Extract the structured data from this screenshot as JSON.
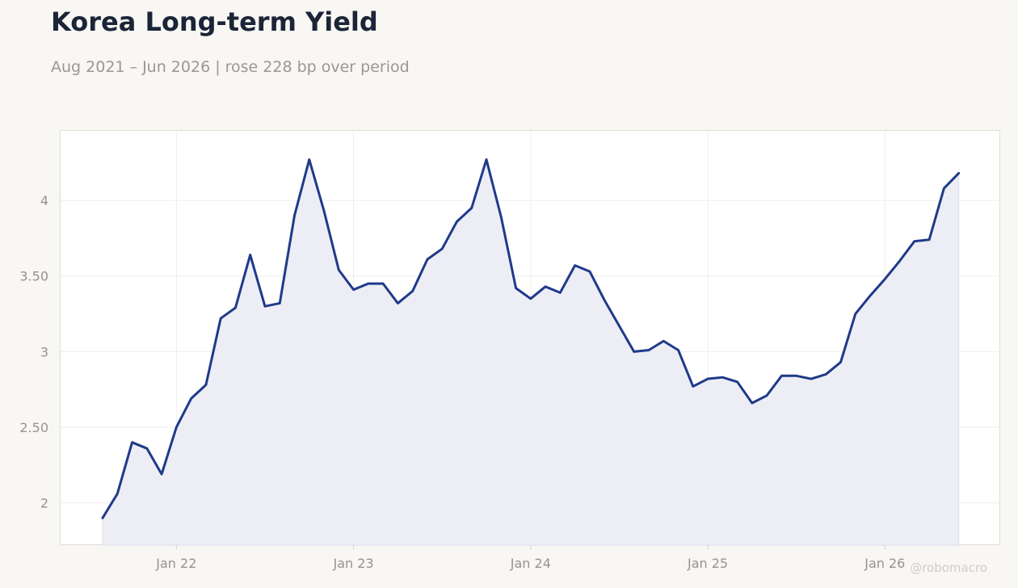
{
  "header": {
    "title": "Korea Long-term Yield",
    "subtitle": "Aug 2021 – Jun 2026 | rose 228 bp over period"
  },
  "watermark": "@robomacro",
  "colors": {
    "line": "#1f3a8a",
    "area_fill": "#edeef5",
    "grid": "#ededed",
    "background": "#f8f7f4",
    "plot_background": "#ffffff"
  },
  "chart_data": {
    "type": "area",
    "x_ticks": [
      "Jan 22",
      "Jan 23",
      "Jan 24",
      "Jan 25",
      "Jan 26"
    ],
    "y_ticks": [
      "2",
      "2.50",
      "3",
      "3.50",
      "4"
    ],
    "y_tick_values": [
      2,
      2.5,
      3,
      3.5,
      4
    ],
    "ylim": [
      1.72,
      4.46
    ],
    "grid": true,
    "series": [
      {
        "x": [
          "2021-08",
          "2021-09",
          "2021-10",
          "2021-11",
          "2021-12",
          "2022-01",
          "2022-02",
          "2022-03",
          "2022-04",
          "2022-05",
          "2022-06",
          "2022-07",
          "2022-08",
          "2022-09",
          "2022-10",
          "2022-11",
          "2022-12",
          "2023-01",
          "2023-02",
          "2023-03",
          "2023-04",
          "2023-05",
          "2023-06",
          "2023-07",
          "2023-08",
          "2023-09",
          "2023-10",
          "2023-11",
          "2023-12",
          "2024-01",
          "2024-02",
          "2024-03",
          "2024-04",
          "2024-05",
          "2024-06",
          "2024-07",
          "2024-08",
          "2024-09",
          "2024-10",
          "2024-11",
          "2024-12",
          "2025-01",
          "2025-02",
          "2025-03",
          "2025-04",
          "2025-05",
          "2025-06",
          "2025-07",
          "2025-08",
          "2025-09",
          "2025-10",
          "2025-11",
          "2025-12",
          "2026-01",
          "2026-02",
          "2026-03",
          "2026-04",
          "2026-05",
          "2026-06"
        ],
        "values": [
          1.9,
          2.06,
          2.4,
          2.36,
          2.19,
          2.5,
          2.69,
          2.78,
          3.22,
          3.29,
          3.64,
          3.3,
          3.32,
          3.9,
          4.27,
          3.93,
          3.54,
          3.41,
          3.45,
          3.45,
          3.32,
          3.4,
          3.61,
          3.68,
          3.86,
          3.95,
          4.27,
          3.89,
          3.42,
          3.35,
          3.43,
          3.39,
          3.57,
          3.53,
          3.34,
          3.17,
          3.0,
          3.01,
          3.07,
          3.01,
          2.77,
          2.82,
          2.83,
          2.8,
          2.66,
          2.71,
          2.84,
          2.84,
          2.82,
          2.85,
          2.93,
          3.25,
          3.37,
          3.48,
          3.6,
          3.73,
          3.74,
          4.08,
          4.18
        ]
      }
    ]
  }
}
